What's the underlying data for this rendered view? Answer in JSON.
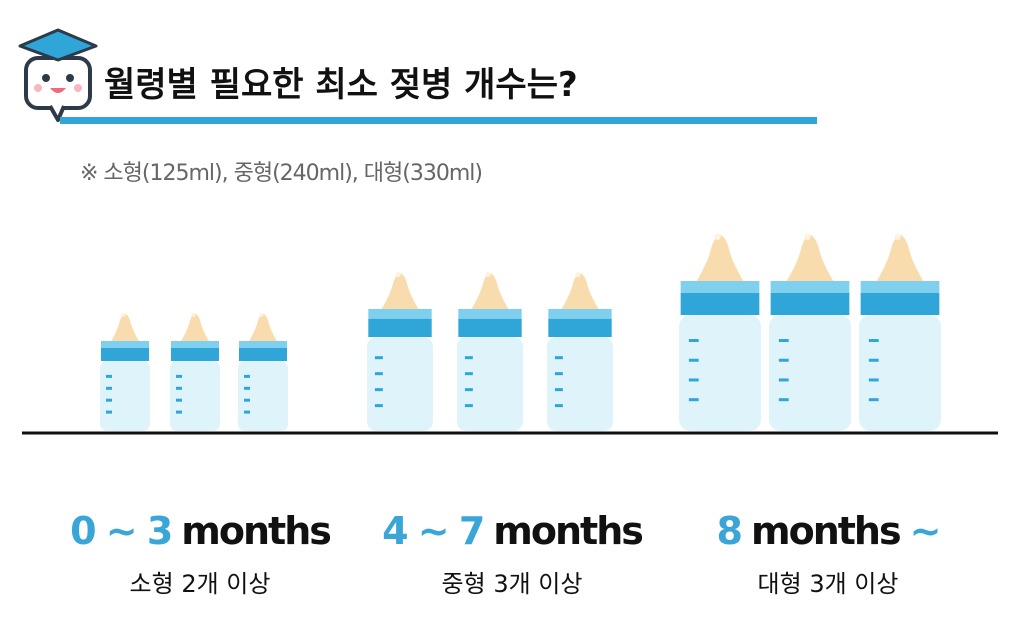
{
  "header": {
    "title": "월령별 필요한 최소 젖병 개수는?",
    "note": "※ 소형(125ml), 중형(240ml), 대형(330ml)"
  },
  "groups": [
    {
      "label": [
        {
          "text": "0 ~ 3",
          "accent": true
        },
        {
          "text": "months",
          "accent": false
        }
      ],
      "caption": "소형 2개 이상"
    },
    {
      "label": [
        {
          "text": "4 ~ 7",
          "accent": true
        },
        {
          "text": "months",
          "accent": false
        }
      ],
      "caption": "중형 3개 이상"
    },
    {
      "label": [
        {
          "text": "8",
          "accent": true
        },
        {
          "text": "months",
          "accent": false
        },
        {
          "text": "~",
          "accent": true
        }
      ],
      "caption": "대형 3개 이상"
    }
  ]
}
